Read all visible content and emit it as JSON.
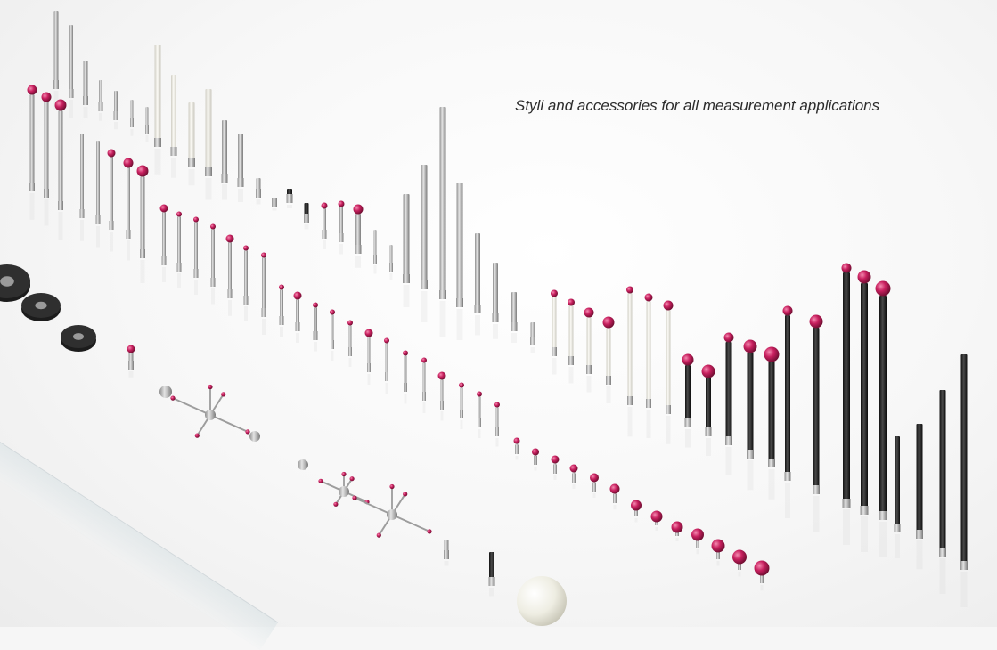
{
  "caption": "Styli and accessories for all measurement applications",
  "colors": {
    "ruby": "#c8205f",
    "steel": "#b9b9b9",
    "ceramic": "#efeee6",
    "carbon": "#2a2a2a",
    "background": "#f6f6f6"
  },
  "icons": [
    "stylus-ruby-tip",
    "stylus-carbon-fibre",
    "stylus-extension",
    "star-stylus",
    "stylus-disc",
    "ceramic-sphere"
  ]
}
